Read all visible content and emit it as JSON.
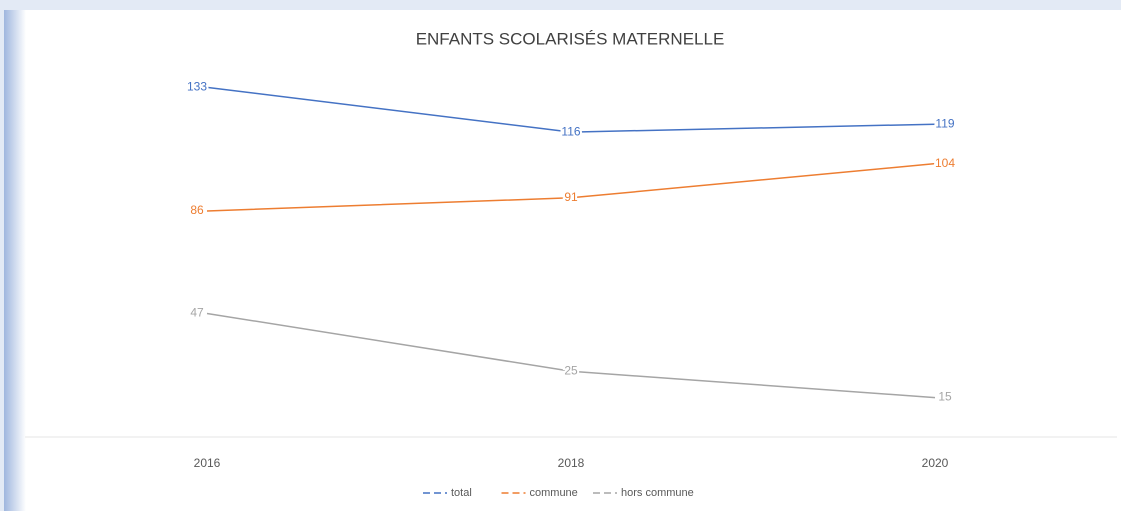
{
  "chart_data": {
    "type": "line",
    "title": "ENFANTS SCOLARISÉS MATERNELLE",
    "categories": [
      "2016",
      "2018",
      "2020"
    ],
    "series": [
      {
        "name": "total",
        "color": "#4472c4",
        "values": [
          133,
          116,
          119
        ]
      },
      {
        "name": "commune",
        "color": "#ed7d31",
        "values": [
          86,
          91,
          104
        ]
      },
      {
        "name": "hors commune",
        "color": "#a5a5a5",
        "values": [
          47,
          25,
          15
        ]
      }
    ],
    "ylim": [
      0,
      140
    ],
    "data_labels": true,
    "legend": "bottom"
  }
}
